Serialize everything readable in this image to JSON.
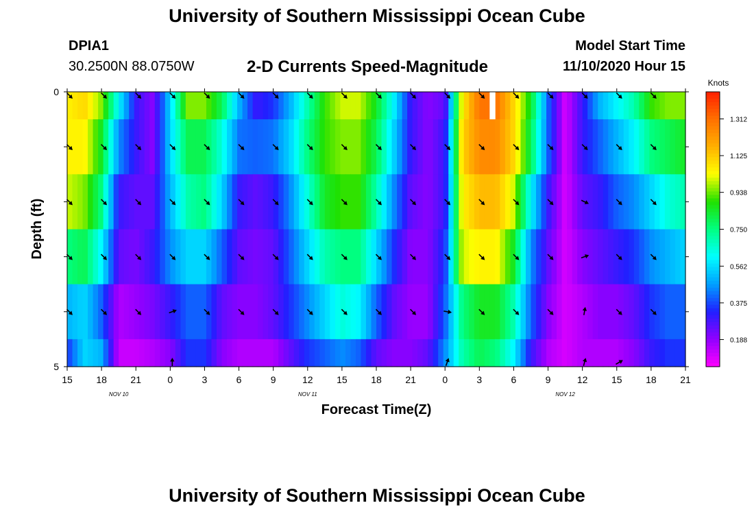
{
  "header": {
    "title": "University of Southern Mississippi Ocean Cube",
    "station_id": "DPIA1",
    "coordinates": "30.2500N 88.0750W",
    "model_start_label": "Model Start Time",
    "model_start_value": "11/10/2020 Hour 15"
  },
  "footer": {
    "title": "University of Southern Mississippi Ocean Cube"
  },
  "colors": {
    "scale": [
      "#ff00ff",
      "#9000ff",
      "#2020ff",
      "#00a0ff",
      "#00ffff",
      "#00ff80",
      "#20e000",
      "#ffff00",
      "#ffb000",
      "#ff7000",
      "#ff2000"
    ],
    "arrow": "#000000",
    "gap": "#ffffff"
  },
  "chart_data": {
    "type": "heatmap",
    "title": "2-D Currents Speed-Magnitude",
    "xlabel": "Forecast Time(Z)",
    "ylabel": "Depth (ft)",
    "colorbar_label": "Knots",
    "colorbar_ticks": [
      "1.312",
      "1.125",
      "0.938",
      "0.750",
      "0.562",
      "0.375",
      "0.188"
    ],
    "colorbar_range": [
      0.05,
      1.45
    ],
    "x_tick_labels": [
      "15",
      "18",
      "21",
      "0",
      "3",
      "6",
      "9",
      "12",
      "15",
      "18",
      "21",
      "0",
      "3",
      "6",
      "9",
      "12",
      "15",
      "18",
      "21"
    ],
    "x_range_hours": [
      0,
      54
    ],
    "date_labels": [
      {
        "text": "NOV  10",
        "hour": 4.5
      },
      {
        "text": "NOV  11",
        "hour": 21
      },
      {
        "text": "NOV  12",
        "hour": 43.5
      }
    ],
    "y_tick_labels": [
      {
        "text": "0",
        "depth": 0
      },
      {
        "text": "5",
        "depth": 5
      }
    ],
    "depth_range": [
      0,
      5
    ],
    "depth_levels": [
      0,
      1,
      2,
      3,
      4,
      5
    ],
    "speed_samples_hours": [
      0,
      1.5,
      3,
      4.5,
      6,
      7.5,
      9,
      10.5,
      12,
      13.5,
      15,
      16.5,
      18,
      19.5,
      21,
      22.5,
      24,
      25.5,
      27,
      28.5,
      30,
      31.5,
      33,
      34.5,
      36,
      37.5,
      39,
      40.5,
      42,
      43.5,
      45,
      46.5,
      48,
      49.5,
      51,
      52.5,
      54
    ],
    "speed_knots": [
      [
        1.05,
        1.1,
        0.95,
        0.6,
        0.3,
        0.2,
        0.55,
        0.95,
        0.95,
        0.8,
        0.5,
        0.3,
        0.35,
        0.5,
        0.7,
        0.9,
        1.0,
        1.0,
        0.85,
        0.6,
        0.3,
        0.2,
        0.25,
        1.05,
        1.3,
        1.3,
        1.1,
        0.85,
        0.4,
        0.1,
        0.3,
        0.5,
        0.6,
        0.7,
        0.9,
        0.95,
        0.95
      ],
      [
        1.05,
        1.05,
        0.85,
        0.45,
        0.3,
        0.2,
        0.55,
        0.8,
        0.8,
        0.65,
        0.42,
        0.4,
        0.42,
        0.55,
        0.75,
        0.9,
        0.95,
        0.95,
        0.8,
        0.55,
        0.3,
        0.2,
        0.3,
        1.1,
        1.25,
        1.25,
        1.1,
        0.8,
        0.4,
        0.1,
        0.3,
        0.4,
        0.5,
        0.6,
        0.75,
        0.8,
        0.85
      ],
      [
        1.0,
        0.95,
        0.75,
        0.3,
        0.25,
        0.25,
        0.5,
        0.7,
        0.75,
        0.55,
        0.3,
        0.25,
        0.3,
        0.45,
        0.65,
        0.85,
        0.9,
        0.9,
        0.7,
        0.45,
        0.25,
        0.2,
        0.3,
        1.05,
        1.15,
        1.15,
        1.0,
        0.6,
        0.3,
        0.1,
        0.25,
        0.3,
        0.4,
        0.45,
        0.55,
        0.65,
        0.7
      ],
      [
        0.75,
        0.8,
        0.6,
        0.25,
        0.22,
        0.3,
        0.45,
        0.55,
        0.55,
        0.4,
        0.25,
        0.22,
        0.25,
        0.4,
        0.55,
        0.7,
        0.75,
        0.75,
        0.55,
        0.35,
        0.2,
        0.2,
        0.35,
        1.0,
        1.05,
        1.05,
        0.85,
        0.45,
        0.25,
        0.1,
        0.2,
        0.25,
        0.3,
        0.35,
        0.45,
        0.5,
        0.55
      ],
      [
        0.5,
        0.55,
        0.4,
        0.15,
        0.18,
        0.22,
        0.3,
        0.4,
        0.4,
        0.25,
        0.2,
        0.2,
        0.25,
        0.35,
        0.45,
        0.55,
        0.65,
        0.6,
        0.4,
        0.25,
        0.18,
        0.18,
        0.4,
        0.75,
        0.85,
        0.85,
        0.7,
        0.4,
        0.2,
        0.1,
        0.15,
        0.2,
        0.2,
        0.25,
        0.35,
        0.4,
        0.4
      ],
      [
        0.35,
        0.55,
        0.5,
        0.12,
        0.12,
        0.15,
        0.2,
        0.35,
        0.35,
        0.2,
        0.15,
        0.15,
        0.15,
        0.25,
        0.35,
        0.4,
        0.45,
        0.4,
        0.25,
        0.2,
        0.2,
        0.25,
        0.45,
        0.7,
        0.8,
        0.75,
        0.6,
        0.3,
        0.15,
        0.1,
        0.15,
        0.15,
        0.15,
        0.2,
        0.3,
        0.35,
        0.35
      ]
    ],
    "data_gaps": [
      {
        "hour_start": 36.9,
        "hour_end": 37.4,
        "depth_start": 0,
        "depth_end": 0.5
      }
    ],
    "arrow_sample_hours": [
      0,
      3,
      6,
      9,
      12,
      15,
      18,
      21,
      24,
      27,
      30,
      33,
      36,
      39,
      42,
      45,
      48,
      51
    ],
    "arrow_depths": [
      0,
      1,
      2,
      3,
      4,
      5
    ],
    "arrow_directions_deg": [
      [
        135,
        135,
        135,
        135,
        135,
        135,
        135,
        135,
        135,
        135,
        135,
        135,
        135,
        135,
        135,
        135,
        135,
        135
      ],
      [
        135,
        135,
        135,
        135,
        135,
        135,
        135,
        135,
        135,
        135,
        135,
        135,
        135,
        135,
        135,
        135,
        135,
        135
      ],
      [
        135,
        135,
        135,
        135,
        135,
        135,
        135,
        135,
        135,
        135,
        135,
        135,
        135,
        135,
        135,
        115,
        135,
        135
      ],
      [
        135,
        135,
        135,
        135,
        135,
        135,
        135,
        135,
        135,
        135,
        135,
        135,
        135,
        135,
        135,
        70,
        135,
        135
      ],
      [
        135,
        135,
        135,
        70,
        135,
        135,
        135,
        135,
        135,
        135,
        135,
        100,
        135,
        135,
        135,
        10,
        135,
        135
      ],
      [
        null,
        null,
        null,
        0,
        null,
        null,
        null,
        null,
        null,
        null,
        null,
        20,
        null,
        null,
        null,
        15,
        60,
        null
      ]
    ]
  }
}
